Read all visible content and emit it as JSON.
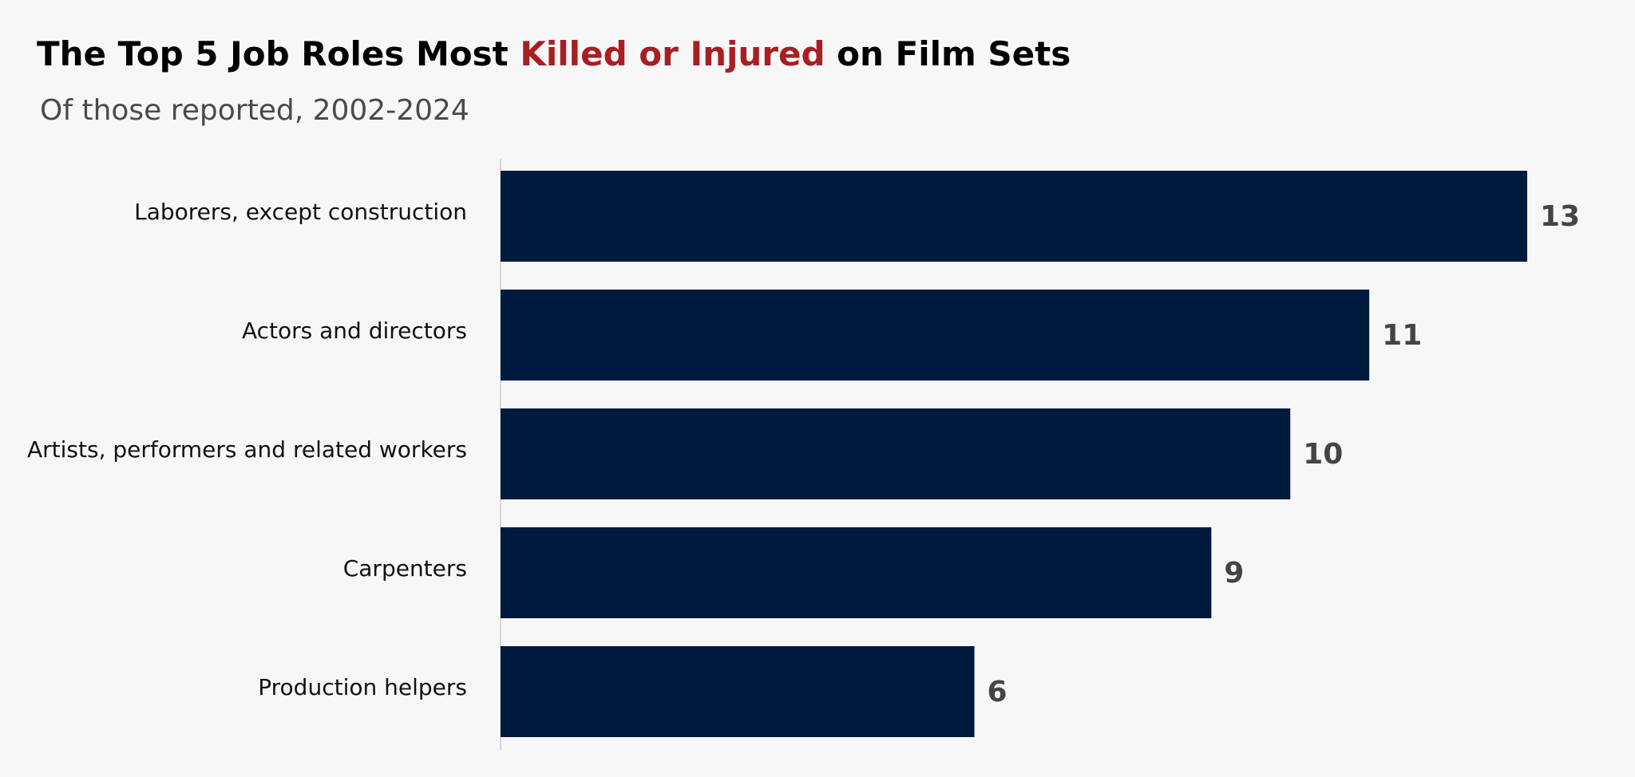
{
  "chart_data": {
    "type": "bar",
    "orientation": "horizontal",
    "title_parts": [
      {
        "text": "The Top 5 Job Roles Most ",
        "color": "#000000"
      },
      {
        "text": "Killed or Injured",
        "color": "#a81e22"
      },
      {
        "text": " on Film Sets",
        "color": "#000000"
      }
    ],
    "subtitle": "Of those reported, 2002-2024",
    "categories": [
      "Laborers, except construction",
      "Actors and directors",
      "Artists, performers and related workers",
      "Carpenters",
      "Production helpers"
    ],
    "values": [
      13,
      11,
      10,
      9,
      6
    ],
    "color": "#001a3d",
    "xlim": [
      0,
      13
    ]
  }
}
